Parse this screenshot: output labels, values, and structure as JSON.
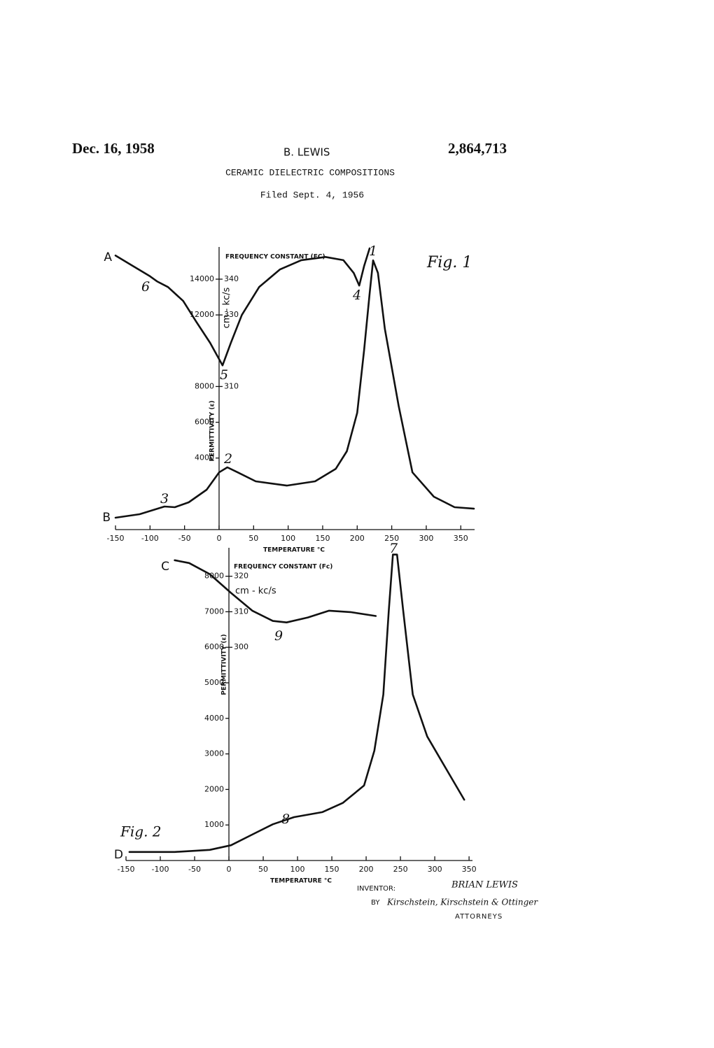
{
  "header": {
    "date": "Dec. 16, 1958",
    "inventor": "B. LEWIS",
    "patent_number": "2,864,713",
    "title": "CERAMIC DIELECTRIC COMPOSITIONS",
    "filed": "Filed Sept. 4, 1956"
  },
  "chart_data": [
    {
      "type": "line",
      "title": "Fig. 1",
      "x_label": "TEMPERATURE °C",
      "y_label": "PERMITTIVITY (ε)",
      "y2_label": "FREQUENCY CONSTANT (FC)",
      "y2_unit": "cm - kc/s",
      "xlim": [
        -150,
        370
      ],
      "ylim": [
        0,
        15800
      ],
      "y2lim": [
        270,
        349
      ],
      "xticks": [
        -150,
        -100,
        -50,
        0,
        50,
        100,
        150,
        200,
        250,
        300,
        350
      ],
      "yticks": [
        4000,
        6000,
        8000,
        12000,
        14000
      ],
      "y2ticks": [
        310,
        330,
        340
      ],
      "series": [
        {
          "name": "A",
          "color": "#111111",
          "axis": "y2",
          "x": [
            -150,
            -125,
            -100,
            -90,
            -74,
            -52,
            -33,
            -13,
            5,
            17,
            33,
            58,
            88,
            119,
            154,
            180,
            195,
            203,
            210,
            218
          ],
          "values": [
            346.6,
            343.7,
            340.8,
            339.4,
            337.8,
            333.9,
            328.1,
            322.2,
            315.9,
            322.2,
            330.0,
            337.8,
            342.7,
            345.3,
            346.2,
            345.3,
            341.7,
            338.2,
            343.7,
            348.6
          ]
        },
        {
          "name": "B",
          "color": "#111111",
          "x": [
            -150,
            -115,
            -79,
            -64,
            -44,
            -18,
            0,
            12,
            27,
            53,
            98,
            139,
            169,
            185,
            200,
            210,
            218,
            223,
            230,
            240,
            260,
            280,
            311,
            341,
            369
          ],
          "values": [
            665,
            860,
            1290,
            1250,
            1525,
            2230,
            3200,
            3480,
            3200,
            2700,
            2460,
            2700,
            3400,
            4380,
            6530,
            10050,
            13180,
            15050,
            14350,
            11220,
            6920,
            3200,
            1840,
            1250,
            1170
          ]
        }
      ],
      "annotations": [
        "1",
        "2",
        "3",
        "4",
        "5",
        "6"
      ]
    },
    {
      "type": "line",
      "title": "Fig. 2",
      "x_label": "TEMPERATURE °C",
      "y_label": "PERMITTIVITY (ε)",
      "y2_label": "FREQUENCY CONSTANT (Fc)",
      "y2_unit": "cm - kc/s",
      "xlim": [
        -150,
        355
      ],
      "ylim": [
        0,
        8800
      ],
      "y2lim": [
        240,
        328
      ],
      "xticks": [
        -150,
        -100,
        -50,
        0,
        50,
        100,
        150,
        200,
        250,
        300,
        350
      ],
      "yticks": [
        1000,
        2000,
        3000,
        4000,
        5000,
        6000,
        7000,
        8000
      ],
      "y2ticks": [
        300,
        310,
        320
      ],
      "series": [
        {
          "name": "C",
          "color": "#111111",
          "axis": "y2",
          "x": [
            -79,
            -58,
            -28,
            3,
            34,
            64,
            84,
            115,
            146,
            177,
            214
          ],
          "values": [
            324.5,
            323.7,
            320.6,
            315.3,
            310.3,
            307.4,
            307.0,
            308.4,
            310.3,
            309.9,
            308.8
          ]
        },
        {
          "name": "D",
          "color": "#111111",
          "x": [
            -145,
            -79,
            -28,
            3,
            34,
            64,
            95,
            136,
            166,
            197,
            212,
            225,
            233,
            239,
            245,
            254,
            268,
            289,
            319,
            343
          ],
          "values": [
            240,
            240,
            300,
            430,
            730,
            1020,
            1220,
            1360,
            1620,
            2110,
            3090,
            4670,
            7030,
            8610,
            8610,
            7030,
            4670,
            3490,
            2500,
            1710
          ]
        }
      ],
      "annotations": [
        "7",
        "8",
        "9"
      ]
    }
  ],
  "footer": {
    "inventor_label": "INVENTOR:",
    "inventor_name": "BRIAN LEWIS",
    "by": "BY",
    "signature": "Kirschstein, Kirschstein & Ottinger",
    "attorneys": "ATTORNEYS"
  }
}
